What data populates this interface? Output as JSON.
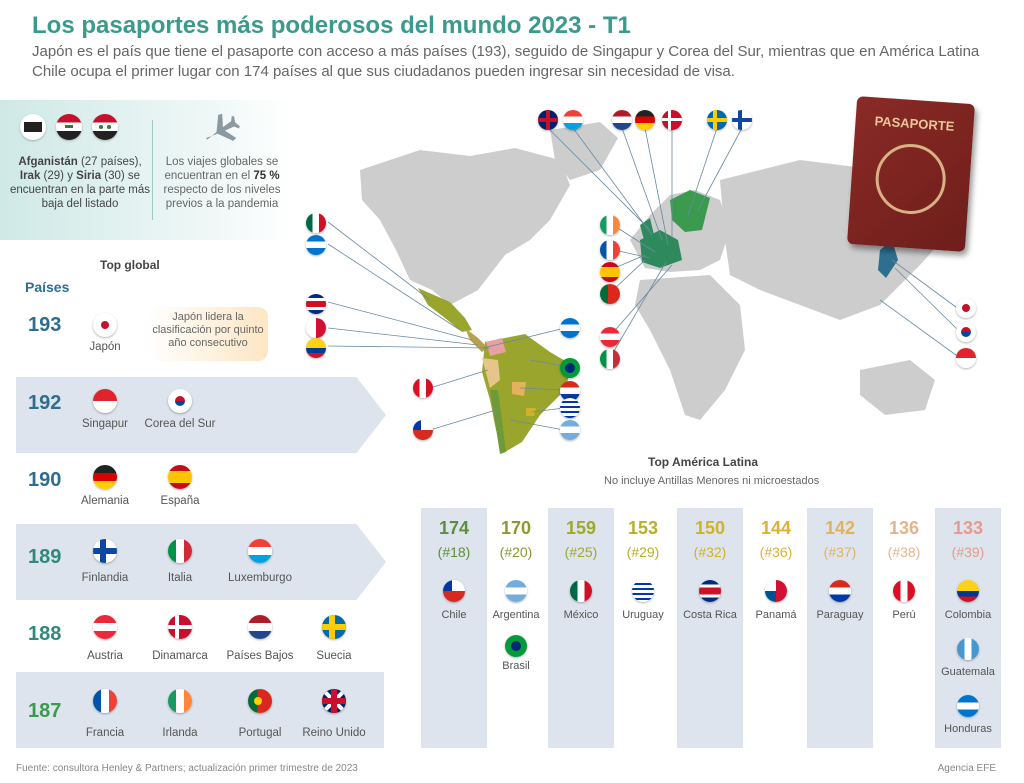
{
  "title": "Los pasaportes más poderosos del mundo 2023 -  T1",
  "subtitle": "Japón es el país que tiene el pasaporte con acceso a más países (193), seguido de Singapur y Corea del Sur, mientras que en América Latina Chile ocupa el primer lugar con 174 países al que sus ciudadanos pueden ingresar sin necesidad de visa.",
  "info": {
    "left_b1": "Afganistán",
    "left_t1": " (27 países), ",
    "left_b2": "Irak",
    "left_t2": " (29) y ",
    "left_b3": "Siria",
    "left_t3": " (30) se encuentran en la parte más baja del listado",
    "right_t1": "Los viajes globales se encuentran en el ",
    "right_b": "75 %",
    "right_t2": " respecto de los niveles previos a la pandemia",
    "plane_icon": "airplane-icon"
  },
  "top_global_label": "Top global",
  "paises_label": "Países",
  "japan_note": "Japón lidera la clasificación por quinto año consecutivo",
  "global_ranks": [
    {
      "num": "193",
      "color": "#2e6e8e",
      "countries": [
        "Japón"
      ]
    },
    {
      "num": "192",
      "color": "#2e6e8e",
      "countries": [
        "Singapur",
        "Corea del Sur"
      ]
    },
    {
      "num": "190",
      "color": "#2e6e8e",
      "countries": [
        "Alemania",
        "España"
      ]
    },
    {
      "num": "189",
      "color": "#2e8a7c",
      "countries": [
        "Finlandia",
        "Italia",
        "Luxemburgo"
      ]
    },
    {
      "num": "188",
      "color": "#2e8a7c",
      "countries": [
        "Austria",
        "Dinamarca",
        "Países Bajos",
        "Suecia"
      ]
    },
    {
      "num": "187",
      "color": "#3a9a4e",
      "countries": [
        "Francia",
        "Irlanda",
        "Portugal",
        "Reino Unido"
      ]
    }
  ],
  "passport_label": "PASAPORTE",
  "la_title": "Top América Latina",
  "la_subtitle": "No incluye Antillas Menores ni microestados",
  "latam": [
    {
      "num": "174",
      "rank": "(#18)",
      "color": "#5e8e3a",
      "countries": [
        "Chile"
      ]
    },
    {
      "num": "170",
      "rank": "(#20)",
      "color": "#8a9a2e",
      "countries": [
        "Argentina",
        "Brasil"
      ]
    },
    {
      "num": "159",
      "rank": "(#25)",
      "color": "#a0a82a",
      "countries": [
        "México"
      ]
    },
    {
      "num": "153",
      "rank": "(#29)",
      "color": "#b8b02a",
      "countries": [
        "Uruguay"
      ]
    },
    {
      "num": "150",
      "rank": "(#32)",
      "color": "#cfb22a",
      "countries": [
        "Costa Rica"
      ]
    },
    {
      "num": "144",
      "rank": "(#36)",
      "color": "#dcb22e",
      "countries": [
        "Panamá"
      ]
    },
    {
      "num": "142",
      "rank": "(#37)",
      "color": "#e2b35a",
      "countries": [
        "Paraguay"
      ]
    },
    {
      "num": "136",
      "rank": "(#38)",
      "color": "#e6b48a",
      "countries": [
        "Perú"
      ]
    },
    {
      "num": "133",
      "rank": "(#39)",
      "color": "#e89a8a",
      "countries": [
        "Colombia",
        "Guatemala",
        "Honduras"
      ]
    }
  ],
  "footer": "Fuente: consultora Henley & Partners; actualización primer trimestre de 2023",
  "agency": "Agencia EFE"
}
